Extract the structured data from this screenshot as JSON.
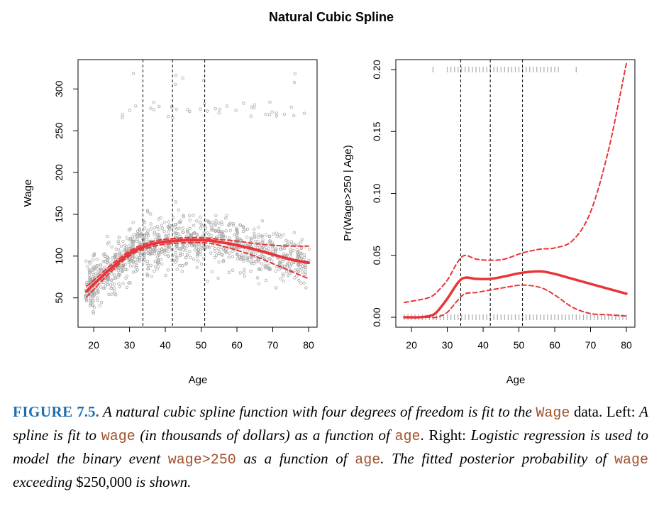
{
  "chart_data": [
    {
      "type": "scatter",
      "panel": "left",
      "title": "Natural Cubic Spline",
      "xlabel": "Age",
      "ylabel": "Wage",
      "xlim": [
        18,
        80
      ],
      "ylim": [
        20,
        330
      ],
      "xticks": [
        20,
        30,
        40,
        50,
        60,
        70,
        80
      ],
      "yticks": [
        50,
        100,
        150,
        200,
        250,
        300
      ],
      "knots": [
        33.75,
        42,
        51
      ],
      "series": [
        {
          "name": "fit",
          "x": [
            18,
            20,
            25,
            30,
            33.75,
            38,
            42,
            46,
            51,
            55,
            60,
            65,
            70,
            75,
            80
          ],
          "y": [
            58,
            66,
            86,
            103,
            111,
            116,
            118,
            119,
            119,
            117,
            113,
            108,
            102,
            96,
            92
          ]
        },
        {
          "name": "upper band",
          "x": [
            18,
            20,
            25,
            30,
            33.75,
            38,
            42,
            46,
            51,
            55,
            60,
            65,
            70,
            75,
            80
          ],
          "y": [
            64,
            71,
            90,
            106,
            114,
            119,
            121,
            122,
            122,
            120,
            118,
            115,
            113,
            112,
            112
          ]
        },
        {
          "name": "lower band",
          "x": [
            18,
            20,
            25,
            30,
            33.75,
            38,
            42,
            46,
            51,
            55,
            60,
            65,
            70,
            75,
            80
          ],
          "y": [
            51,
            60,
            82,
            100,
            108,
            113,
            115,
            116,
            116,
            113,
            107,
            100,
            91,
            82,
            73
          ]
        }
      ],
      "scatter_note": "approximately 3000 observations of wage vs age"
    },
    {
      "type": "line",
      "panel": "right",
      "xlabel": "Age",
      "ylabel": "Pr(Wage>250 | Age)",
      "xlim": [
        18,
        80
      ],
      "ylim": [
        0,
        0.2
      ],
      "xticks": [
        20,
        30,
        40,
        50,
        60,
        70,
        80
      ],
      "yticks": [
        0.0,
        0.05,
        0.1,
        0.15,
        0.2
      ],
      "ytick_labels": [
        "0.00",
        "0.05",
        "0.10",
        "0.15",
        "0.20"
      ],
      "knots": [
        33.75,
        42,
        51
      ],
      "series": [
        {
          "name": "fit",
          "x": [
            18,
            22,
            25,
            27,
            30,
            33,
            35,
            38,
            42,
            46,
            51,
            56,
            60,
            65,
            70,
            75,
            80
          ],
          "y": [
            0.0,
            0.0,
            0.001,
            0.004,
            0.015,
            0.028,
            0.032,
            0.031,
            0.031,
            0.033,
            0.036,
            0.037,
            0.035,
            0.031,
            0.027,
            0.023,
            0.019
          ]
        },
        {
          "name": "upper band",
          "x": [
            18,
            22,
            25,
            27,
            30,
            33,
            35,
            38,
            42,
            46,
            51,
            56,
            60,
            65,
            70,
            75,
            80
          ],
          "y": [
            0.012,
            0.014,
            0.016,
            0.02,
            0.03,
            0.045,
            0.05,
            0.047,
            0.046,
            0.047,
            0.052,
            0.055,
            0.056,
            0.062,
            0.085,
            0.135,
            0.205
          ]
        },
        {
          "name": "lower band",
          "x": [
            18,
            22,
            25,
            27,
            30,
            33,
            35,
            38,
            42,
            46,
            51,
            56,
            60,
            65,
            70,
            75,
            80
          ],
          "y": [
            0.0,
            0.0,
            0.0,
            0.0,
            0.004,
            0.014,
            0.019,
            0.02,
            0.022,
            0.024,
            0.026,
            0.024,
            0.018,
            0.008,
            0.003,
            0.002,
            0.001
          ]
        }
      ],
      "rug_top_range": [
        26,
        66
      ],
      "rug_bottom_range": [
        18,
        80
      ]
    }
  ],
  "caption": {
    "label": "FIGURE",
    "number": "7.5.",
    "s1": "A natural cubic spline function with four degrees of freedom is fit to the ",
    "c1": "Wage",
    "s2": " data. Left: ",
    "s3": "A spline is fit to ",
    "c2": "wage",
    "s4": " (in thousands of dollars) as a function of ",
    "c3": "age",
    "s5": ". Right: ",
    "s6": "Logistic regression is used to model the binary event ",
    "c4": "wage>250",
    "s7": " as a function of ",
    "c5": "age",
    "s8": ". The fitted posterior probability of ",
    "c6": "wage",
    "s9": " exceeding ",
    "s10": "$250,000",
    "s11": " is shown."
  },
  "colors": {
    "fit": "#e8353a",
    "points": "#a8a8a8",
    "rug": "#b0b0b0",
    "axis": "#000000",
    "caption_label": "#1f6fb0",
    "code": "#a0522d"
  }
}
